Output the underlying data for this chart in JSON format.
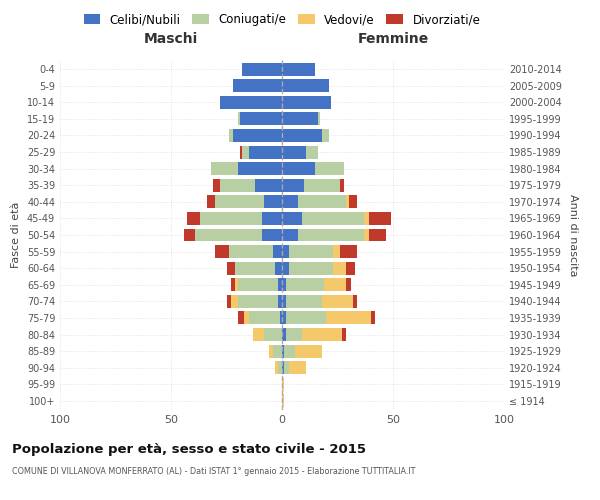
{
  "age_groups": [
    "100+",
    "95-99",
    "90-94",
    "85-89",
    "80-84",
    "75-79",
    "70-74",
    "65-69",
    "60-64",
    "55-59",
    "50-54",
    "45-49",
    "40-44",
    "35-39",
    "30-34",
    "25-29",
    "20-24",
    "15-19",
    "10-14",
    "5-9",
    "0-4"
  ],
  "birth_years": [
    "≤ 1914",
    "1915-1919",
    "1920-1924",
    "1925-1929",
    "1930-1934",
    "1935-1939",
    "1940-1944",
    "1945-1949",
    "1950-1954",
    "1955-1959",
    "1960-1964",
    "1965-1969",
    "1970-1974",
    "1975-1979",
    "1980-1984",
    "1985-1989",
    "1990-1994",
    "1995-1999",
    "2000-2004",
    "2005-2009",
    "2010-2014"
  ],
  "males_celibi": [
    0,
    0,
    0,
    0,
    0,
    1,
    2,
    2,
    3,
    4,
    9,
    9,
    8,
    12,
    20,
    15,
    22,
    19,
    28,
    22,
    18
  ],
  "males_coniugati": [
    0,
    0,
    2,
    4,
    8,
    14,
    18,
    18,
    18,
    20,
    30,
    28,
    22,
    16,
    12,
    3,
    2,
    1,
    0,
    0,
    0
  ],
  "males_vedovi": [
    0,
    0,
    1,
    2,
    5,
    2,
    3,
    1,
    0,
    0,
    0,
    0,
    0,
    0,
    0,
    0,
    0,
    0,
    0,
    0,
    0
  ],
  "males_divorziati": [
    0,
    0,
    0,
    0,
    0,
    3,
    2,
    2,
    4,
    6,
    5,
    6,
    4,
    3,
    0,
    1,
    0,
    0,
    0,
    0,
    0
  ],
  "females_celibi": [
    0,
    0,
    1,
    1,
    2,
    2,
    2,
    2,
    3,
    3,
    7,
    9,
    7,
    10,
    15,
    11,
    18,
    16,
    22,
    21,
    15
  ],
  "females_coniugati": [
    0,
    0,
    2,
    5,
    7,
    18,
    16,
    17,
    20,
    20,
    30,
    28,
    22,
    16,
    13,
    5,
    3,
    1,
    0,
    0,
    0
  ],
  "females_vedovi": [
    1,
    1,
    8,
    12,
    18,
    20,
    14,
    10,
    6,
    3,
    2,
    2,
    1,
    0,
    0,
    0,
    0,
    0,
    0,
    0,
    0
  ],
  "females_divorziati": [
    0,
    0,
    0,
    0,
    2,
    2,
    2,
    2,
    4,
    8,
    8,
    10,
    4,
    2,
    0,
    0,
    0,
    0,
    0,
    0,
    0
  ],
  "color_celibi": "#4472c4",
  "color_coniugati": "#b8cfa4",
  "color_vedovi": "#f5c96a",
  "color_divorziati": "#c0392b",
  "title": "Popolazione per età, sesso e stato civile - 2015",
  "subtitle": "COMUNE DI VILLANOVA MONFERRATO (AL) - Dati ISTAT 1° gennaio 2015 - Elaborazione TUTTITALIA.IT",
  "ylabel_left": "Fasce di età",
  "ylabel_right": "Anni di nascita",
  "xlim": [
    -100,
    100
  ],
  "xticks": [
    -100,
    -50,
    0,
    50,
    100
  ],
  "xtick_labels": [
    "100",
    "50",
    "0",
    "50",
    "100"
  ],
  "legend_labels": [
    "Celibi/Nubili",
    "Coniugati/e",
    "Vedovi/e",
    "Divorziati/e"
  ],
  "maschi_label": "Maschi",
  "femmine_label": "Femmine",
  "background_color": "#ffffff",
  "grid_color": "#cccccc",
  "bar_height": 0.78
}
